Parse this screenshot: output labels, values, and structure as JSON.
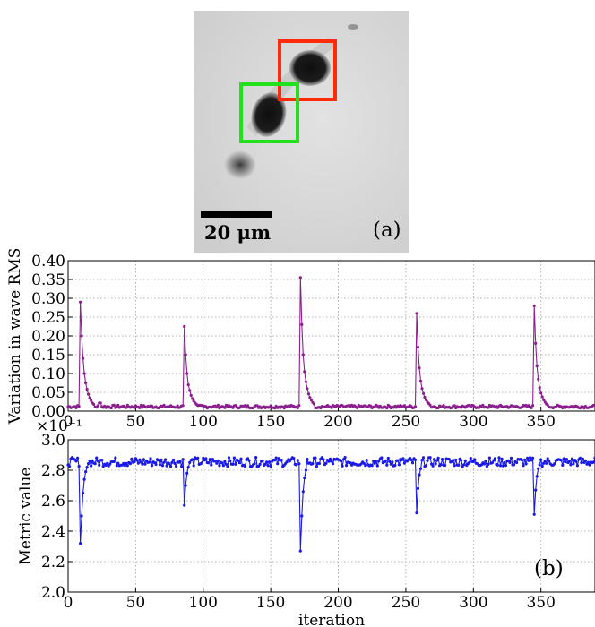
{
  "image": {
    "scalebar_label": "20 μm",
    "panel_label": "(a)",
    "boxes": [
      {
        "name": "red-selection-box",
        "color": "#ff2a0a"
      },
      {
        "name": "green-selection-box",
        "color": "#22e11c"
      }
    ]
  },
  "chart_data": [
    {
      "type": "line",
      "ylabel": "Variation in wave RMS",
      "xlabel": "",
      "color": "#8b1f8f",
      "xlim": [
        0,
        390
      ],
      "ylim": [
        0,
        0.4
      ],
      "xticks": [
        "0",
        "50",
        "100",
        "150",
        "200",
        "250",
        "300",
        "350"
      ],
      "yticks": [
        "0.00",
        "0.05",
        "0.10",
        "0.15",
        "0.20",
        "0.25",
        "0.30",
        "0.35",
        "0.40"
      ],
      "baseline": 0.012,
      "spikes": [
        {
          "x": 9,
          "peak": 0.29,
          "decay": [
            0.29,
            0.2,
            0.14,
            0.1,
            0.075,
            0.058,
            0.045,
            0.035,
            0.028,
            0.022,
            0.018
          ]
        },
        {
          "x": 86,
          "peak": 0.225,
          "decay": [
            0.225,
            0.15,
            0.1,
            0.07,
            0.055,
            0.042,
            0.033,
            0.027,
            0.022,
            0.018,
            0.015
          ]
        },
        {
          "x": 172,
          "peak": 0.355,
          "decay": [
            0.355,
            0.23,
            0.15,
            0.105,
            0.078,
            0.06,
            0.046,
            0.036,
            0.029,
            0.023,
            0.019
          ]
        },
        {
          "x": 258,
          "peak": 0.26,
          "decay": [
            0.26,
            0.17,
            0.115,
            0.08,
            0.06,
            0.047,
            0.037,
            0.03,
            0.024,
            0.02,
            0.016
          ]
        },
        {
          "x": 345,
          "peak": 0.28,
          "decay": [
            0.28,
            0.18,
            0.12,
            0.085,
            0.062,
            0.048,
            0.038,
            0.03,
            0.024,
            0.019,
            0.016
          ]
        }
      ],
      "grid": true
    },
    {
      "type": "line",
      "ylabel": "Metric value",
      "xlabel": "iteration",
      "offset_text": "×10⁻¹",
      "panel_label": "(b)",
      "color": "#1a1ae6",
      "xlim": [
        0,
        390
      ],
      "ylim": [
        2.0,
        3.0
      ],
      "xticks": [
        "0",
        "50",
        "100",
        "150",
        "200",
        "250",
        "300",
        "350"
      ],
      "yticks": [
        "2.0",
        "2.2",
        "2.4",
        "2.6",
        "2.8",
        "3.0"
      ],
      "baseline": 2.855,
      "dips": [
        {
          "x": 9,
          "min": 2.32,
          "recovery": [
            2.32,
            2.5,
            2.65,
            2.74,
            2.79,
            2.82
          ]
        },
        {
          "x": 86,
          "min": 2.57,
          "recovery": [
            2.57,
            2.7,
            2.78,
            2.82
          ]
        },
        {
          "x": 172,
          "min": 2.27,
          "recovery": [
            2.27,
            2.5,
            2.66,
            2.75,
            2.8
          ]
        },
        {
          "x": 258,
          "min": 2.52,
          "recovery": [
            2.52,
            2.68,
            2.77,
            2.81
          ]
        },
        {
          "x": 345,
          "min": 2.51,
          "recovery": [
            2.51,
            2.67,
            2.76,
            2.81
          ]
        }
      ],
      "grid": true
    }
  ]
}
